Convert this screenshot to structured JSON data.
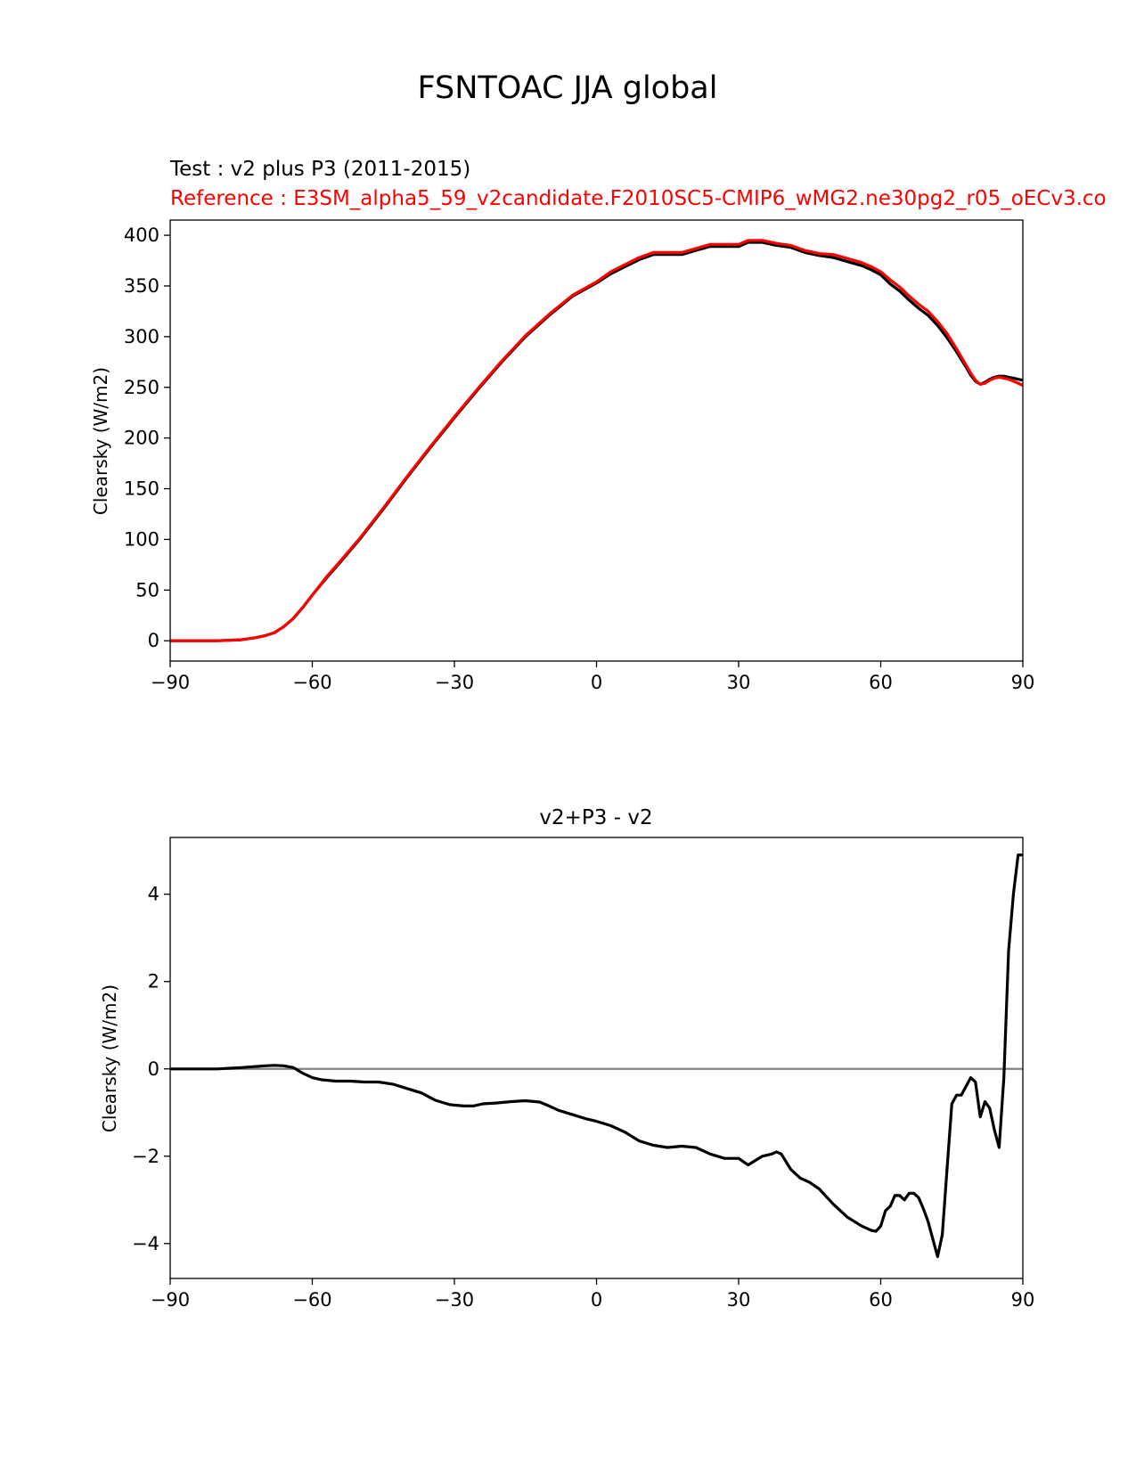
{
  "suptitle": "FSNTOAC JJA global",
  "colors": {
    "test": "#000000",
    "reference": "#ff0000",
    "zero_line": "#808080",
    "axis": "#000000"
  },
  "chart_data": [
    {
      "type": "line",
      "title_test": "Test : v2 plus P3 (2011-2015)",
      "title_reference": "Reference : E3SM_alpha5_59_v2candidate.F2010SC5-CMIP6_wMG2.ne30pg2_r05_oECv3.co",
      "ylabel": "Clearsky (W/m2)",
      "xlabel": "",
      "xlim": [
        -90,
        90
      ],
      "ylim": [
        -20,
        415
      ],
      "xticks": [
        -90,
        -60,
        -30,
        0,
        30,
        60,
        90
      ],
      "xtick_labels": [
        "−90",
        "−60",
        "−30",
        "0",
        "30",
        "60",
        "90"
      ],
      "yticks": [
        0,
        50,
        100,
        150,
        200,
        250,
        300,
        350,
        400
      ],
      "ytick_labels": [
        "0",
        "50",
        "100",
        "150",
        "200",
        "250",
        "300",
        "350",
        "400"
      ],
      "series": [
        {
          "name": "test",
          "color": "#000000",
          "x": [
            -90,
            -85,
            -80,
            -75,
            -72,
            -70,
            -68,
            -66,
            -64,
            -62,
            -60,
            -57,
            -54,
            -50,
            -45,
            -40,
            -35,
            -30,
            -25,
            -20,
            -15,
            -10,
            -5,
            0,
            3,
            6,
            9,
            12,
            15,
            18,
            21,
            24,
            27,
            30,
            32,
            35,
            38,
            41,
            44,
            47,
            50,
            53,
            56,
            58,
            60,
            62,
            64,
            66,
            68,
            70,
            72,
            74,
            76,
            78,
            79,
            80,
            81,
            82,
            83,
            84,
            85,
            86,
            87,
            88,
            89,
            90
          ],
          "y": [
            0,
            0,
            0,
            1,
            3,
            5,
            8,
            14,
            22,
            33,
            45,
            62,
            78,
            100,
            130,
            161,
            191,
            220,
            248,
            275,
            300,
            321,
            340,
            353,
            362,
            369,
            376,
            381,
            381,
            381,
            385,
            389,
            389,
            389,
            393,
            393,
            390,
            388,
            383,
            380,
            378,
            374,
            370,
            366,
            361,
            352,
            345,
            336,
            328,
            321,
            311,
            299,
            285,
            270,
            262,
            256,
            253,
            255,
            258,
            260,
            261,
            261,
            260,
            259,
            258,
            257
          ]
        },
        {
          "name": "reference",
          "color": "#ff0000",
          "x": [
            -90,
            -85,
            -80,
            -75,
            -72,
            -70,
            -68,
            -66,
            -64,
            -62,
            -60,
            -57,
            -54,
            -50,
            -45,
            -40,
            -35,
            -30,
            -25,
            -20,
            -15,
            -10,
            -5,
            0,
            3,
            6,
            9,
            12,
            15,
            18,
            21,
            24,
            27,
            30,
            32,
            35,
            38,
            41,
            44,
            47,
            50,
            53,
            56,
            58,
            60,
            62,
            64,
            66,
            68,
            70,
            72,
            74,
            76,
            78,
            79,
            80,
            81,
            82,
            83,
            84,
            85,
            86,
            87,
            88,
            89,
            90
          ],
          "y": [
            0,
            0,
            0,
            1,
            3,
            5,
            8,
            14,
            22,
            33,
            45,
            63,
            79,
            101,
            131,
            162,
            192,
            221,
            249,
            276,
            301,
            322,
            341,
            354,
            364,
            371,
            378,
            383,
            383,
            383,
            387,
            391,
            391,
            391,
            395,
            395,
            392,
            390,
            385,
            382,
            381,
            377,
            373,
            369,
            364,
            356,
            349,
            340,
            332,
            325,
            315,
            303,
            288,
            272,
            264,
            257,
            253,
            254,
            257,
            259,
            260,
            259,
            258,
            256,
            254,
            252
          ]
        }
      ]
    },
    {
      "type": "line",
      "title": "v2+P3 - v2",
      "ylabel": "Clearsky (W/m2)",
      "xlabel": "",
      "xlim": [
        -90,
        90
      ],
      "ylim": [
        -4.8,
        5.3
      ],
      "xticks": [
        -90,
        -60,
        -30,
        0,
        30,
        60,
        90
      ],
      "xtick_labels": [
        "−90",
        "−60",
        "−30",
        "0",
        "30",
        "60",
        "90"
      ],
      "yticks": [
        -4,
        -2,
        0,
        2,
        4
      ],
      "ytick_labels": [
        "−4",
        "−2",
        "0",
        "2",
        "4"
      ],
      "zero_line": 0,
      "series": [
        {
          "name": "difference",
          "color": "#000000",
          "x": [
            -90,
            -80,
            -75,
            -70,
            -68,
            -66,
            -64,
            -62,
            -60,
            -58,
            -55,
            -52,
            -49,
            -46,
            -43,
            -40,
            -37,
            -34,
            -31,
            -28,
            -26,
            -24,
            -21,
            -18,
            -15,
            -12,
            -10,
            -8,
            -5,
            -2,
            0,
            3,
            6,
            9,
            12,
            15,
            18,
            21,
            24,
            27,
            30,
            32,
            35,
            37,
            38,
            39,
            41,
            43,
            45,
            47,
            50,
            53,
            56,
            58,
            59,
            60,
            61,
            62,
            63,
            64,
            65,
            66,
            67,
            68,
            69,
            70,
            71,
            72,
            73,
            74,
            75,
            76,
            77,
            78,
            79,
            80,
            81,
            82,
            83,
            84,
            85,
            86,
            87,
            88,
            89,
            90
          ],
          "y": [
            0,
            0,
            0.03,
            0.07,
            0.08,
            0.07,
            0.03,
            -0.1,
            -0.2,
            -0.25,
            -0.28,
            -0.28,
            -0.3,
            -0.3,
            -0.35,
            -0.45,
            -0.55,
            -0.72,
            -0.82,
            -0.85,
            -0.85,
            -0.8,
            -0.78,
            -0.75,
            -0.73,
            -0.76,
            -0.85,
            -0.95,
            -1.05,
            -1.15,
            -1.2,
            -1.3,
            -1.45,
            -1.65,
            -1.75,
            -1.8,
            -1.77,
            -1.8,
            -1.95,
            -2.05,
            -2.05,
            -2.2,
            -2.0,
            -1.95,
            -1.9,
            -1.95,
            -2.3,
            -2.5,
            -2.6,
            -2.75,
            -3.1,
            -3.4,
            -3.6,
            -3.7,
            -3.72,
            -3.6,
            -3.25,
            -3.15,
            -2.9,
            -2.9,
            -3.0,
            -2.85,
            -2.85,
            -2.95,
            -3.2,
            -3.5,
            -3.9,
            -4.3,
            -3.8,
            -2.3,
            -0.8,
            -0.6,
            -0.6,
            -0.4,
            -0.2,
            -0.3,
            -1.1,
            -0.75,
            -0.9,
            -1.4,
            -1.8,
            -0.2,
            2.7,
            4.0,
            4.9,
            4.9
          ]
        }
      ]
    }
  ]
}
